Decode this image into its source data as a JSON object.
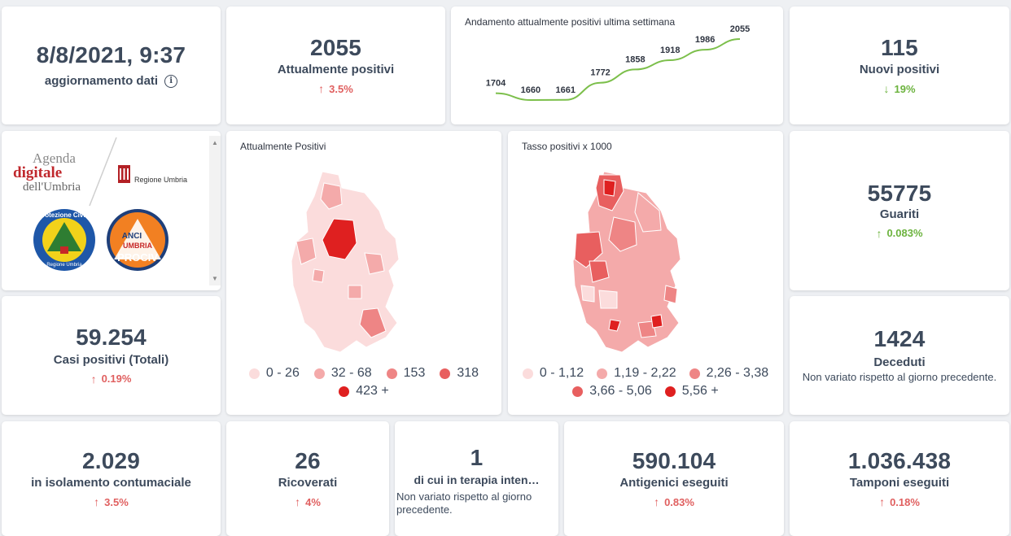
{
  "update": {
    "datetime": "8/8/2021, 9:37",
    "label": "aggiornamento dati"
  },
  "attualmente_positivi": {
    "value": "2055",
    "label": "Attualmente positivi",
    "delta": "3.5%",
    "direction": "up"
  },
  "trend_chart": {
    "title": "Andamento attualmente positivi ultima settimana",
    "chart_data": {
      "type": "line",
      "title": "Andamento attualmente positivi ultima settimana",
      "values": [
        1704,
        1660,
        1661,
        1772,
        1858,
        1918,
        1986,
        2055
      ],
      "labels": [
        "1704",
        "1660",
        "1661",
        "1772",
        "1858",
        "1918",
        "1986",
        "2055"
      ],
      "color": "#7cbf4b"
    }
  },
  "nuovi_positivi": {
    "value": "115",
    "label": "Nuovi positivi",
    "delta": "19%",
    "direction": "down"
  },
  "logos": {
    "agenda_line1": "Agenda",
    "agenda_line2": "digitale",
    "agenda_line3": "dell'Umbria",
    "regione": "Regione Umbria",
    "protezione": "Protezione Civile",
    "protezione_sub": "Regione Umbria",
    "anci_line1": "ANCI",
    "anci_line2": "UMBRIA",
    "anci_line3": "PROCIV"
  },
  "map1": {
    "title": "Attualmente Positivi",
    "legend": [
      {
        "label": "0 - 26",
        "color": "#fbdcdc"
      },
      {
        "label": "32 - 68",
        "color": "#f4aaaa"
      },
      {
        "label": "153",
        "color": "#ee8585"
      },
      {
        "label": "318",
        "color": "#e85f5f"
      },
      {
        "label": "423 +",
        "color": "#df2020"
      }
    ]
  },
  "map2": {
    "title": "Tasso positivi x 1000",
    "legend": [
      {
        "label": "0 - 1,12",
        "color": "#fbdcdc"
      },
      {
        "label": "1,19 - 2,22",
        "color": "#f4aaaa"
      },
      {
        "label": "2,26 - 3,38",
        "color": "#ee8585"
      },
      {
        "label": "3,66 - 5,06",
        "color": "#e85f5f"
      },
      {
        "label": "5,56 +",
        "color": "#df2020"
      }
    ]
  },
  "guariti": {
    "value": "55775",
    "label": "Guariti",
    "delta": "0.083%",
    "direction": "up_green"
  },
  "casi_totali": {
    "value": "59.254",
    "label": "Casi positivi (Totali)",
    "delta": "0.19%",
    "direction": "up"
  },
  "deceduti": {
    "value": "1424",
    "label": "Deceduti",
    "note": "Non variato rispetto al giorno precedente."
  },
  "isolamento": {
    "value": "2.029",
    "label": "in isolamento contumaciale",
    "delta": "3.5%",
    "direction": "up"
  },
  "ricoverati": {
    "value": "26",
    "label": "Ricoverati",
    "delta": "4%",
    "direction": "up"
  },
  "terapia": {
    "value": "1",
    "label": "di cui in terapia inten…",
    "note": "Non variato rispetto al giorno precedente."
  },
  "antigenici": {
    "value": "590.104",
    "label": "Antigenici eseguiti",
    "delta": "0.83%",
    "direction": "up"
  },
  "tamponi": {
    "value": "1.036.438",
    "label": "Tamponi eseguiti",
    "delta": "0.18%",
    "direction": "up"
  },
  "symbols": {
    "arrow_up": "↑",
    "arrow_down": "↓",
    "info": "i",
    "scroll_up": "▲",
    "scroll_down": "▼"
  }
}
